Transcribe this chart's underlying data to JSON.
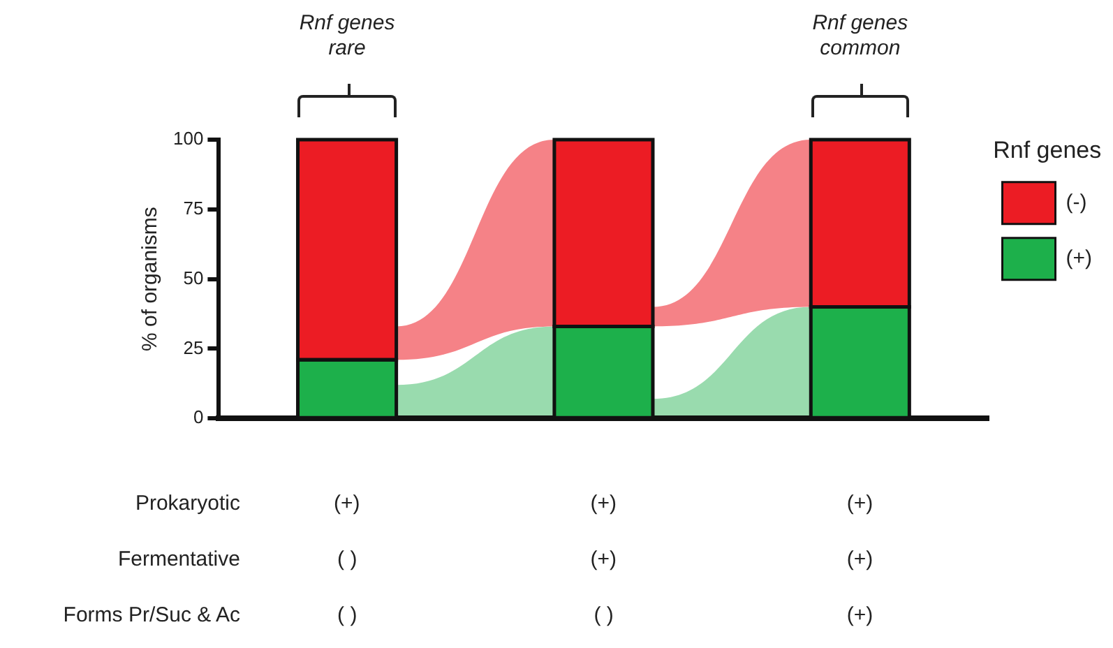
{
  "chart_data": {
    "type": "bar",
    "stacked": true,
    "ylabel": "% of organisms",
    "legend_title": "Rnf genes",
    "legend": "right",
    "categories": [
      null,
      null,
      null
    ],
    "series": [
      {
        "name": "(+)",
        "color": "#1db04b",
        "values": [
          21,
          33,
          40
        ]
      },
      {
        "name": "(-)",
        "color": "#ec1c24",
        "values": [
          79,
          67,
          60
        ]
      }
    ],
    "ylim": [
      0,
      100
    ],
    "yticks": [
      0,
      25,
      50,
      75,
      100
    ],
    "grid": false,
    "annotations": [
      "Rnf genes rare",
      "Rnf genes common",
      "Prokaryotic",
      "(+)",
      "(+)",
      "(+)",
      "Fermentative",
      "( )",
      "(+)",
      "(+)",
      "Forms Pr/Suc & Ac",
      "( )",
      "( )",
      "(+)"
    ]
  }
}
